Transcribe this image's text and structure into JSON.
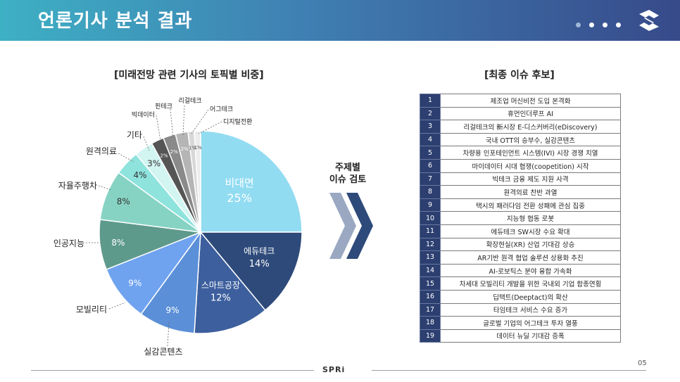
{
  "page": {
    "title": "언론기사 분석 결과",
    "page_number": "05",
    "footer_logo": "SPRi"
  },
  "chart_section": {
    "title": "[미래전망 관련 기사의 토픽별 비중]"
  },
  "arrow": {
    "line1": "주제별",
    "line2": "이슈 검토"
  },
  "issues": {
    "title": "[최종 이슈 후보]",
    "rows": [
      {
        "num": "1",
        "text": "제조업 머신비전 도입 본격화"
      },
      {
        "num": "2",
        "text": "휴먼인더루프 AI"
      },
      {
        "num": "3",
        "text": "리걸테크의 新시장 E-디스커버리(eDiscovery)"
      },
      {
        "num": "4",
        "text": "국내 OTT의 승부수, 실감콘텐츠"
      },
      {
        "num": "5",
        "text": "차량용 인포테인먼트 시스템(IVI) 시장 경쟁 치열"
      },
      {
        "num": "6",
        "text": "마이데이터 시대 협쟁(coopetition) 시작"
      },
      {
        "num": "7",
        "text": "빅테크 금융 제도 지원 사격"
      },
      {
        "num": "8",
        "text": "원격의료 찬반 과열"
      },
      {
        "num": "9",
        "text": "택시의 패러다임 전환 성패에 관심 집중"
      },
      {
        "num": "10",
        "text": "지능형 협동 로봇"
      },
      {
        "num": "11",
        "text": "에듀테크 SW시장 수요 확대"
      },
      {
        "num": "12",
        "text": "확장현실(XR) 산업 기대감 상승"
      },
      {
        "num": "13",
        "text": "AR기반 원격 협업 솔루션 상용화 추진"
      },
      {
        "num": "14",
        "text": "AI-로보틱스 분야 융합 가속화"
      },
      {
        "num": "15",
        "text": "차세대 모빌리티 개발을 위한 국내외 기업 합종연횡"
      },
      {
        "num": "16",
        "text": "딥택트(Deeptact)의 확산"
      },
      {
        "num": "17",
        "text": "타임테크 서비스 수요 증가"
      },
      {
        "num": "18",
        "text": "글로벌 기업의 어그테크 투자 열풍"
      },
      {
        "num": "19",
        "text": "데이터 뉴딜 기대감 증폭"
      }
    ]
  },
  "chart_data": {
    "type": "pie",
    "title": "[미래전망 관련 기사의 토픽별 비중]",
    "slices": [
      {
        "label": "비대면",
        "value": 25,
        "label_text": "25%",
        "color": "#92dcf2",
        "text_color": "#ffffff",
        "placement": "inside"
      },
      {
        "label": "에듀테크",
        "value": 14,
        "label_text": "14%",
        "color": "#2e4a7a",
        "text_color": "#ffffff",
        "placement": "inside"
      },
      {
        "label": "스마트공장",
        "value": 12,
        "label_text": "12%",
        "color": "#3d5f9e",
        "text_color": "#ffffff",
        "placement": "inside"
      },
      {
        "label": "실감콘텐츠",
        "value": 9,
        "label_text": "9%",
        "color": "#5b8fd8",
        "text_color": "#ffffff",
        "placement": "outside"
      },
      {
        "label": "모빌리티",
        "value": 9,
        "label_text": "9%",
        "color": "#6fa3f0",
        "text_color": "#ffffff",
        "placement": "outside"
      },
      {
        "label": "인공지능",
        "value": 8,
        "label_text": "8%",
        "color": "#5e9a8c",
        "text_color": "#ffffff",
        "placement": "outside"
      },
      {
        "label": "자율주행차",
        "value": 8,
        "label_text": "8%",
        "color": "#86d3c3",
        "text_color": "#333333",
        "placement": "outside"
      },
      {
        "label": "원격의료",
        "value": 4,
        "label_text": "4%",
        "color": "#8ee3dd",
        "text_color": "#333333",
        "placement": "outside"
      },
      {
        "label": "기타",
        "value": 3,
        "label_text": "3%",
        "color": "#d2f5f2",
        "text_color": "#333333",
        "placement": "outside"
      },
      {
        "label": "빅데이터",
        "value": 2,
        "label_text": "2%",
        "color": "#555555",
        "text_color": "#ffffff",
        "placement": "outside"
      },
      {
        "label": "핀테크",
        "value": 2,
        "label_text": "2%",
        "color": "#8a8a8a",
        "text_color": "#ffffff",
        "placement": "outside"
      },
      {
        "label": "리걸테크",
        "value": 2,
        "label_text": "2%",
        "color": "#b5b5b5",
        "text_color": "#ffffff",
        "placement": "outside"
      },
      {
        "label": "어그테크",
        "value": 1,
        "label_text": "1%",
        "color": "#d8d8d8",
        "text_color": "#555555",
        "placement": "outside"
      },
      {
        "label": "디지털전환",
        "value": 1,
        "label_text": "1%",
        "color": "#ececec",
        "text_color": "#555555",
        "placement": "outside"
      }
    ]
  }
}
